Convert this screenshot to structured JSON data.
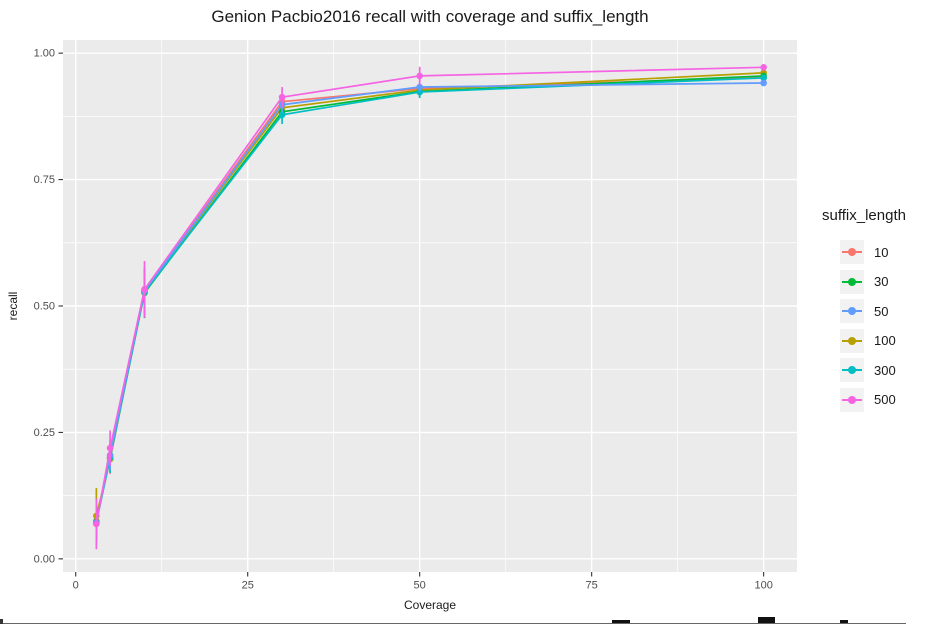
{
  "title": "Genion Pacbio2016 recall with coverage and suffix_length",
  "chart_data": {
    "type": "line",
    "title": "Genion Pacbio2016 recall with coverage and suffix_length",
    "xlabel": "Coverage",
    "ylabel": "recall",
    "legend_title": "suffix_length",
    "legend_position": "right",
    "panel_color": "#EBEBEB",
    "grid_color": "#FFFFFF",
    "grid": "major and minor gridlines, white on gray panel",
    "x": [
      3,
      5,
      10,
      30,
      50,
      100
    ],
    "xlim": [
      -1.85,
      104.85
    ],
    "ylim": [
      -0.026,
      1.026
    ],
    "xticks": {
      "values": [
        0,
        25,
        50,
        75,
        100
      ],
      "labels": [
        "0",
        "25",
        "50",
        "75",
        "100"
      ]
    },
    "yticks": {
      "values": [
        0,
        0.25,
        0.5,
        0.75,
        1
      ],
      "labels": [
        "0.00",
        "0.25",
        "0.50",
        "0.75",
        "1.00"
      ]
    },
    "xminor": [
      12.5,
      37.5,
      62.5,
      87.5
    ],
    "yminor": [
      0.125,
      0.375,
      0.625,
      0.875
    ],
    "draw_order": [
      0,
      3,
      1,
      4,
      2,
      5
    ],
    "series": [
      {
        "name": "10",
        "color": "#F8766D",
        "values": [
          0.075,
          0.198,
          0.53,
          0.904,
          0.93,
          0.952
        ],
        "err": [
          0.03,
          0.03,
          0.045,
          0.015,
          0.01,
          0.005
        ]
      },
      {
        "name": "30",
        "color": "#00BA38",
        "values": [
          0.073,
          0.2,
          0.526,
          0.884,
          0.924,
          0.955
        ],
        "err": [
          0.03,
          0.025,
          0.05,
          0.015,
          0.01,
          0.005
        ]
      },
      {
        "name": "50",
        "color": "#619CFF",
        "values": [
          0.071,
          0.205,
          0.53,
          0.898,
          0.933,
          0.941
        ],
        "err": [
          0.035,
          0.03,
          0.045,
          0.015,
          0.01,
          0.005
        ]
      },
      {
        "name": "100",
        "color": "#B79F00",
        "values": [
          0.085,
          0.197,
          0.53,
          0.892,
          0.927,
          0.961
        ],
        "err": [
          0.055,
          0.025,
          0.045,
          0.015,
          0.01,
          0.005
        ]
      },
      {
        "name": "300",
        "color": "#00BFC4",
        "values": [
          0.072,
          0.2,
          0.528,
          0.878,
          0.923,
          0.951
        ],
        "err": [
          0.035,
          0.03,
          0.045,
          0.018,
          0.012,
          0.005
        ]
      },
      {
        "name": "500",
        "color": "#F564E3",
        "values": [
          0.069,
          0.219,
          0.533,
          0.913,
          0.955,
          0.972
        ],
        "err": [
          0.05,
          0.035,
          0.056,
          0.02,
          0.018,
          0.006
        ]
      }
    ]
  }
}
